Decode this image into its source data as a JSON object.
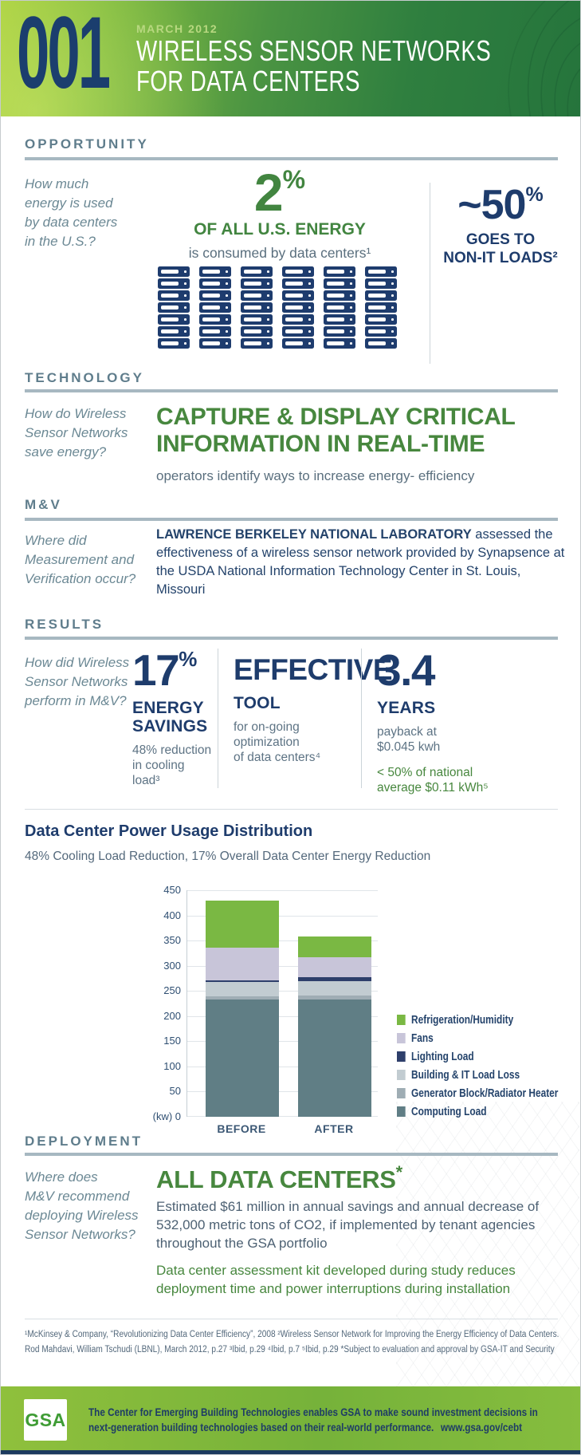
{
  "palette": {
    "navy": "#1e3c6c",
    "green": "#47873e",
    "header_green_light": "#a8cf3c",
    "header_green_dark": "#25743c",
    "section_label": "#5f7d8c",
    "question_gray": "#6b8894",
    "footer_navy": "#1e3c66"
  },
  "header": {
    "issue_number": "001",
    "date": "MARCH 2012",
    "title_line1": "WIRELESS SENSOR NETWORKS",
    "title_line2": "FOR DATA CENTERS"
  },
  "opportunity": {
    "label": "OPPORTUNITY",
    "question": [
      "How much",
      "energy is used",
      "by data centers",
      "in the U.S.?"
    ],
    "stat": "2",
    "stat_unit": "%",
    "caption": "OF ALL U.S. ENERGY",
    "subcaption": "is consumed by data centers¹",
    "server_grid": {
      "rows": 7,
      "columns": 6
    },
    "side_stat": "~50",
    "side_unit": "%",
    "side_cap_line1": "GOES TO",
    "side_cap_line2": "NON-IT LOADS²"
  },
  "technology": {
    "label": "TECHNOLOGY",
    "question": [
      "How do Wireless",
      "Sensor Networks",
      "save energy?"
    ],
    "headline_line1": "CAPTURE & DISPLAY CRITICAL",
    "headline_line2": "INFORMATION IN REAL-TIME",
    "subtext": "operators identify ways to increase energy- efficiency"
  },
  "mv": {
    "label": "M&V",
    "question": [
      "Where did",
      "Measurement and",
      "Verification occur?"
    ],
    "bold_lead": "LAWRENCE BERKELEY NATIONAL LABORATORY",
    "body": " assessed the effectiveness of a wireless sensor network provided by Synapsence at the USDA National Information Technology Center in St. Louis, Missouri"
  },
  "results": {
    "label": "RESULTS",
    "question": [
      "How did Wireless",
      "Sensor Networks",
      "perform in M&V?"
    ],
    "col1": {
      "stat": "17",
      "unit": "%",
      "title_line1": "ENERGY",
      "title_line2": "SAVINGS",
      "sub_line1": "48% reduction",
      "sub_line2": "in cooling load³"
    },
    "col2": {
      "title_line1": "EFFECTIVE",
      "title_line2": "TOOL",
      "sub_line1": "for on-going",
      "sub_line2": "optimization",
      "sub_line3": "of data centers⁴"
    },
    "col3": {
      "stat": "3.4",
      "title": "YEARS",
      "sub_line1": "payback at",
      "sub_line2": "$0.045 kwh",
      "green_line1": "< 50% of national",
      "green_line2": "average $0.11 kWh⁵"
    }
  },
  "chart_section": {
    "title": "Data Center Power Usage Distribution",
    "subtitle": "48% Cooling Load Reduction, 17% Overall Data Center Energy Reduction"
  },
  "chart_data": {
    "type": "bar",
    "stacked": true,
    "categories": [
      "BEFORE",
      "AFTER"
    ],
    "series": [
      {
        "name": "Computing Load",
        "color": "#607e85",
        "values": [
          233,
          233
        ]
      },
      {
        "name": "Generator Block/Radiator Heater",
        "color": "#9fadb4",
        "values": [
          7,
          8
        ]
      },
      {
        "name": "Building & IT Load Loss",
        "color": "#c2ccd1",
        "values": [
          28,
          29
        ]
      },
      {
        "name": "Lighting Load",
        "color": "#2e3f6b",
        "values": [
          3,
          7
        ]
      },
      {
        "name": "Fans",
        "color": "#c8c5d9",
        "values": [
          65,
          40
        ]
      },
      {
        "name": "Refrigeration/Humidity",
        "color": "#7ab843",
        "values": [
          94,
          41
        ]
      }
    ],
    "totals": [
      430,
      358
    ],
    "ylabel": "(kw)",
    "ylim": [
      0,
      450
    ],
    "ytick_step": 50,
    "zero_label": "(kw) 0",
    "grid": true,
    "legend_position": "right",
    "legend_order": [
      "Refrigeration/Humidity",
      "Fans",
      "Lighting Load",
      "Building & IT Load Loss",
      "Generator Block/Radiator Heater",
      "Computing Load"
    ]
  },
  "deployment": {
    "label": "DEPLOYMENT",
    "question": [
      "Where does",
      "M&V recommend",
      "deploying Wireless",
      "Sensor Networks?"
    ],
    "headline": "ALL DATA CENTERS",
    "headline_ref": "*",
    "body_lines": [
      "Estimated $61 million in annual savings and annual decrease of",
      "532,000 metric tons of CO2, if implemented by tenant agencies",
      "throughout the GSA portfolio"
    ],
    "green_lines": [
      "Data center assessment kit developed during study reduces",
      "deployment time and power interruptions during installation"
    ]
  },
  "footnotes": {
    "line1": "¹McKinsey & Company, “Revolutionizing Data Center Efficiency”, 2008   ²Wireless Sensor Network for Improving the Energy Efficiency of Data Centers.",
    "line2": "Rod Mahdavi, William Tschudi (LBNL), March 2012, p.27   ³Ibid, p.29   ⁴Ibid, p.7   ⁵Ibid, p.29   *Subject to evaluation and approval by GSA-IT and Security"
  },
  "footer": {
    "logo": "GSA",
    "line1": "The Center for Emerging Building Technologies enables GSA to make sound investment decisions in",
    "line2": "next-generation building technologies based on their real-world performance.",
    "url": "www.gsa.gov/cebt"
  }
}
